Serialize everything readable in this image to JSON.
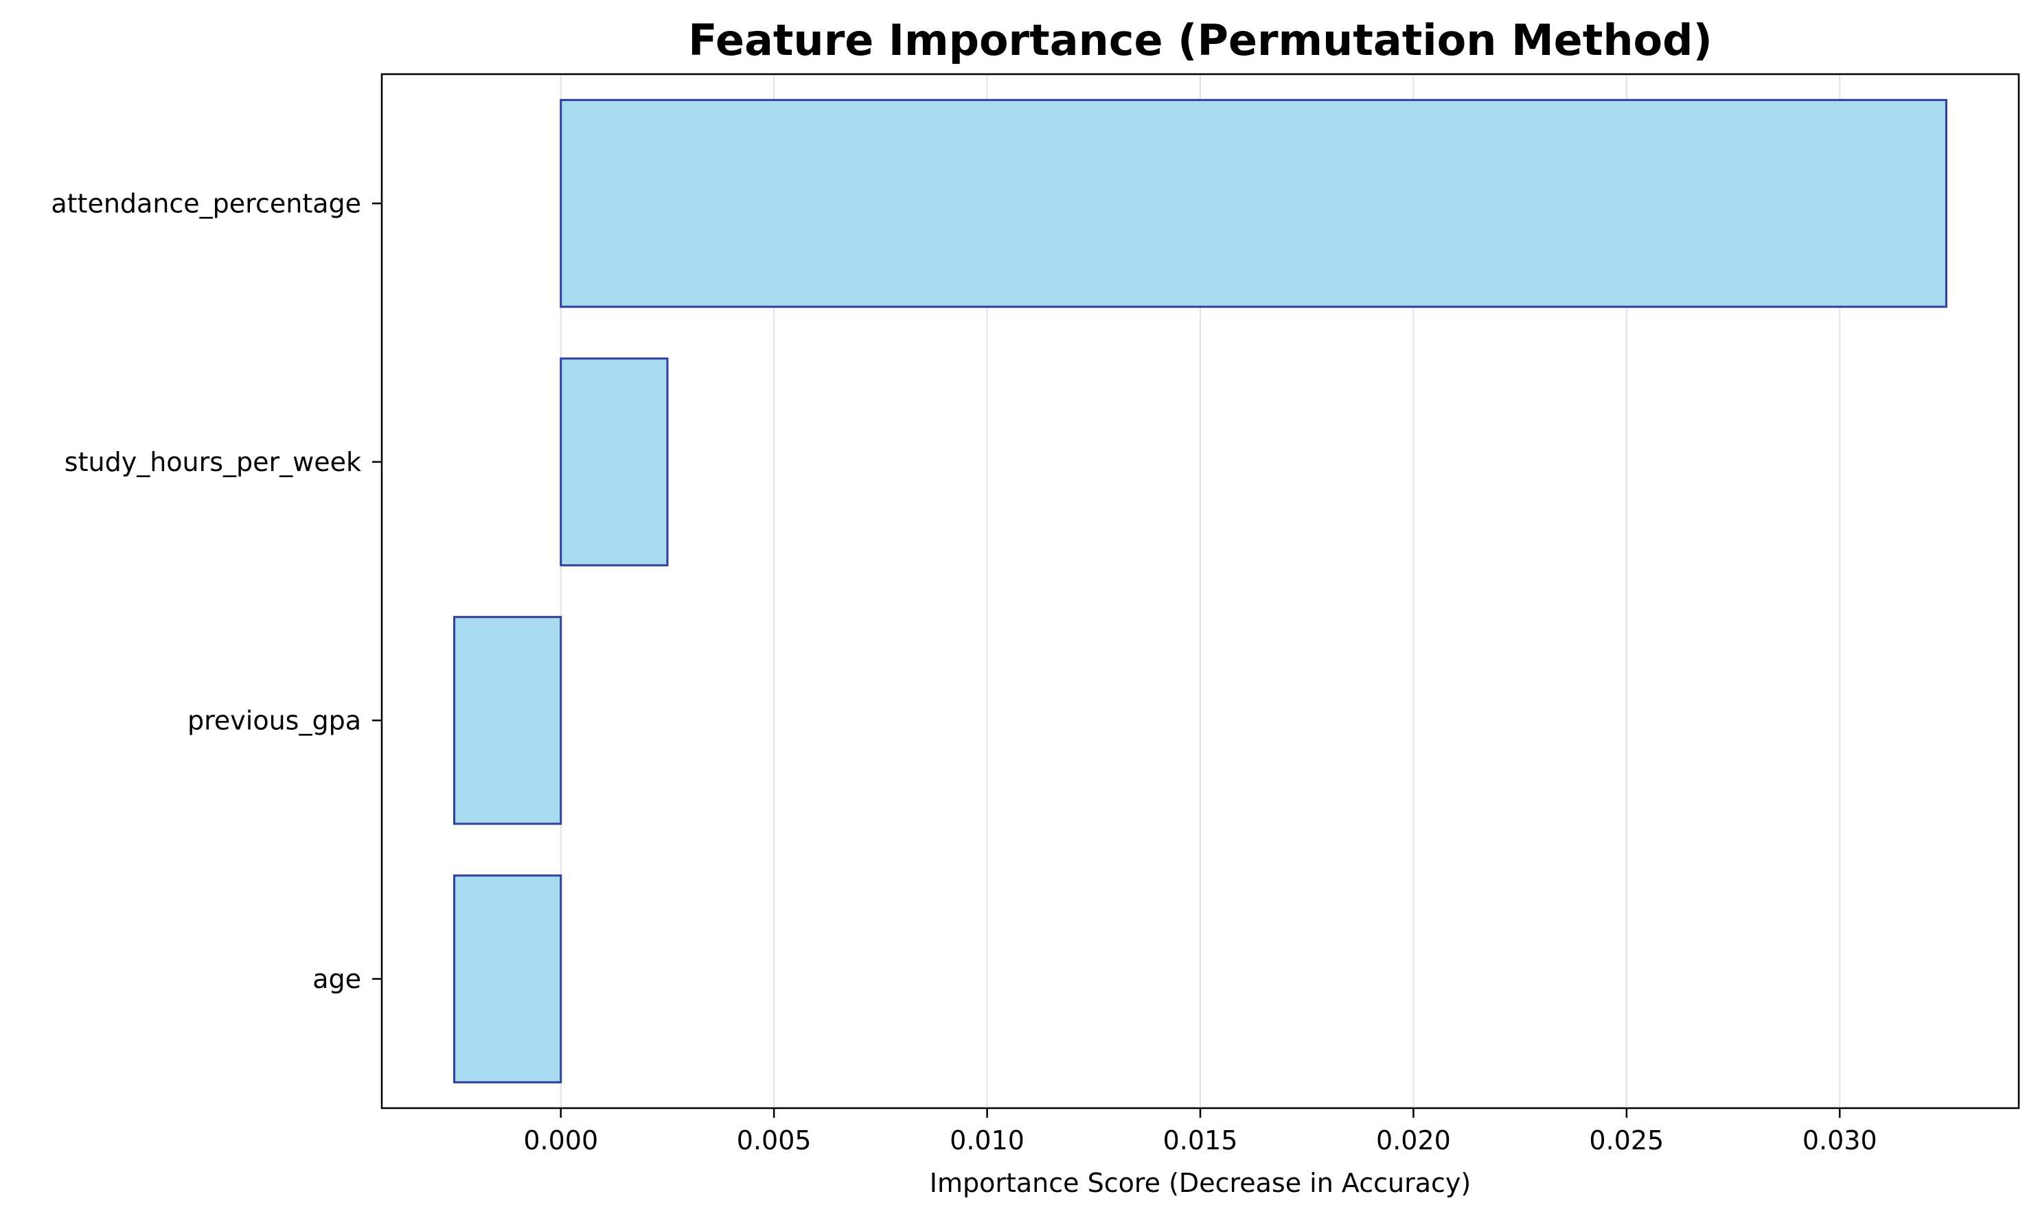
{
  "chart_data": {
    "type": "bar",
    "orientation": "horizontal",
    "title": "Feature Importance (Permutation Method)",
    "xlabel": "Importance Score (Decrease in Accuracy)",
    "ylabel": "",
    "categories": [
      "attendance_percentage",
      "study_hours_per_week",
      "previous_gpa",
      "age"
    ],
    "values": [
      0.0325,
      0.0025,
      -0.0025,
      -0.0025
    ],
    "xlim": [
      -0.0042,
      0.0342
    ],
    "xticks": [
      0.0,
      0.005,
      0.01,
      0.015,
      0.02,
      0.025,
      0.03
    ],
    "xtick_labels": [
      "0.000",
      "0.005",
      "0.010",
      "0.015",
      "0.020",
      "0.025",
      "0.030"
    ],
    "grid": "x",
    "colors": {
      "bar_fill": "#a8dbef",
      "bar_edge": "#2f3fa0",
      "grid": "#e3e3e3",
      "axis": "#000000"
    }
  }
}
